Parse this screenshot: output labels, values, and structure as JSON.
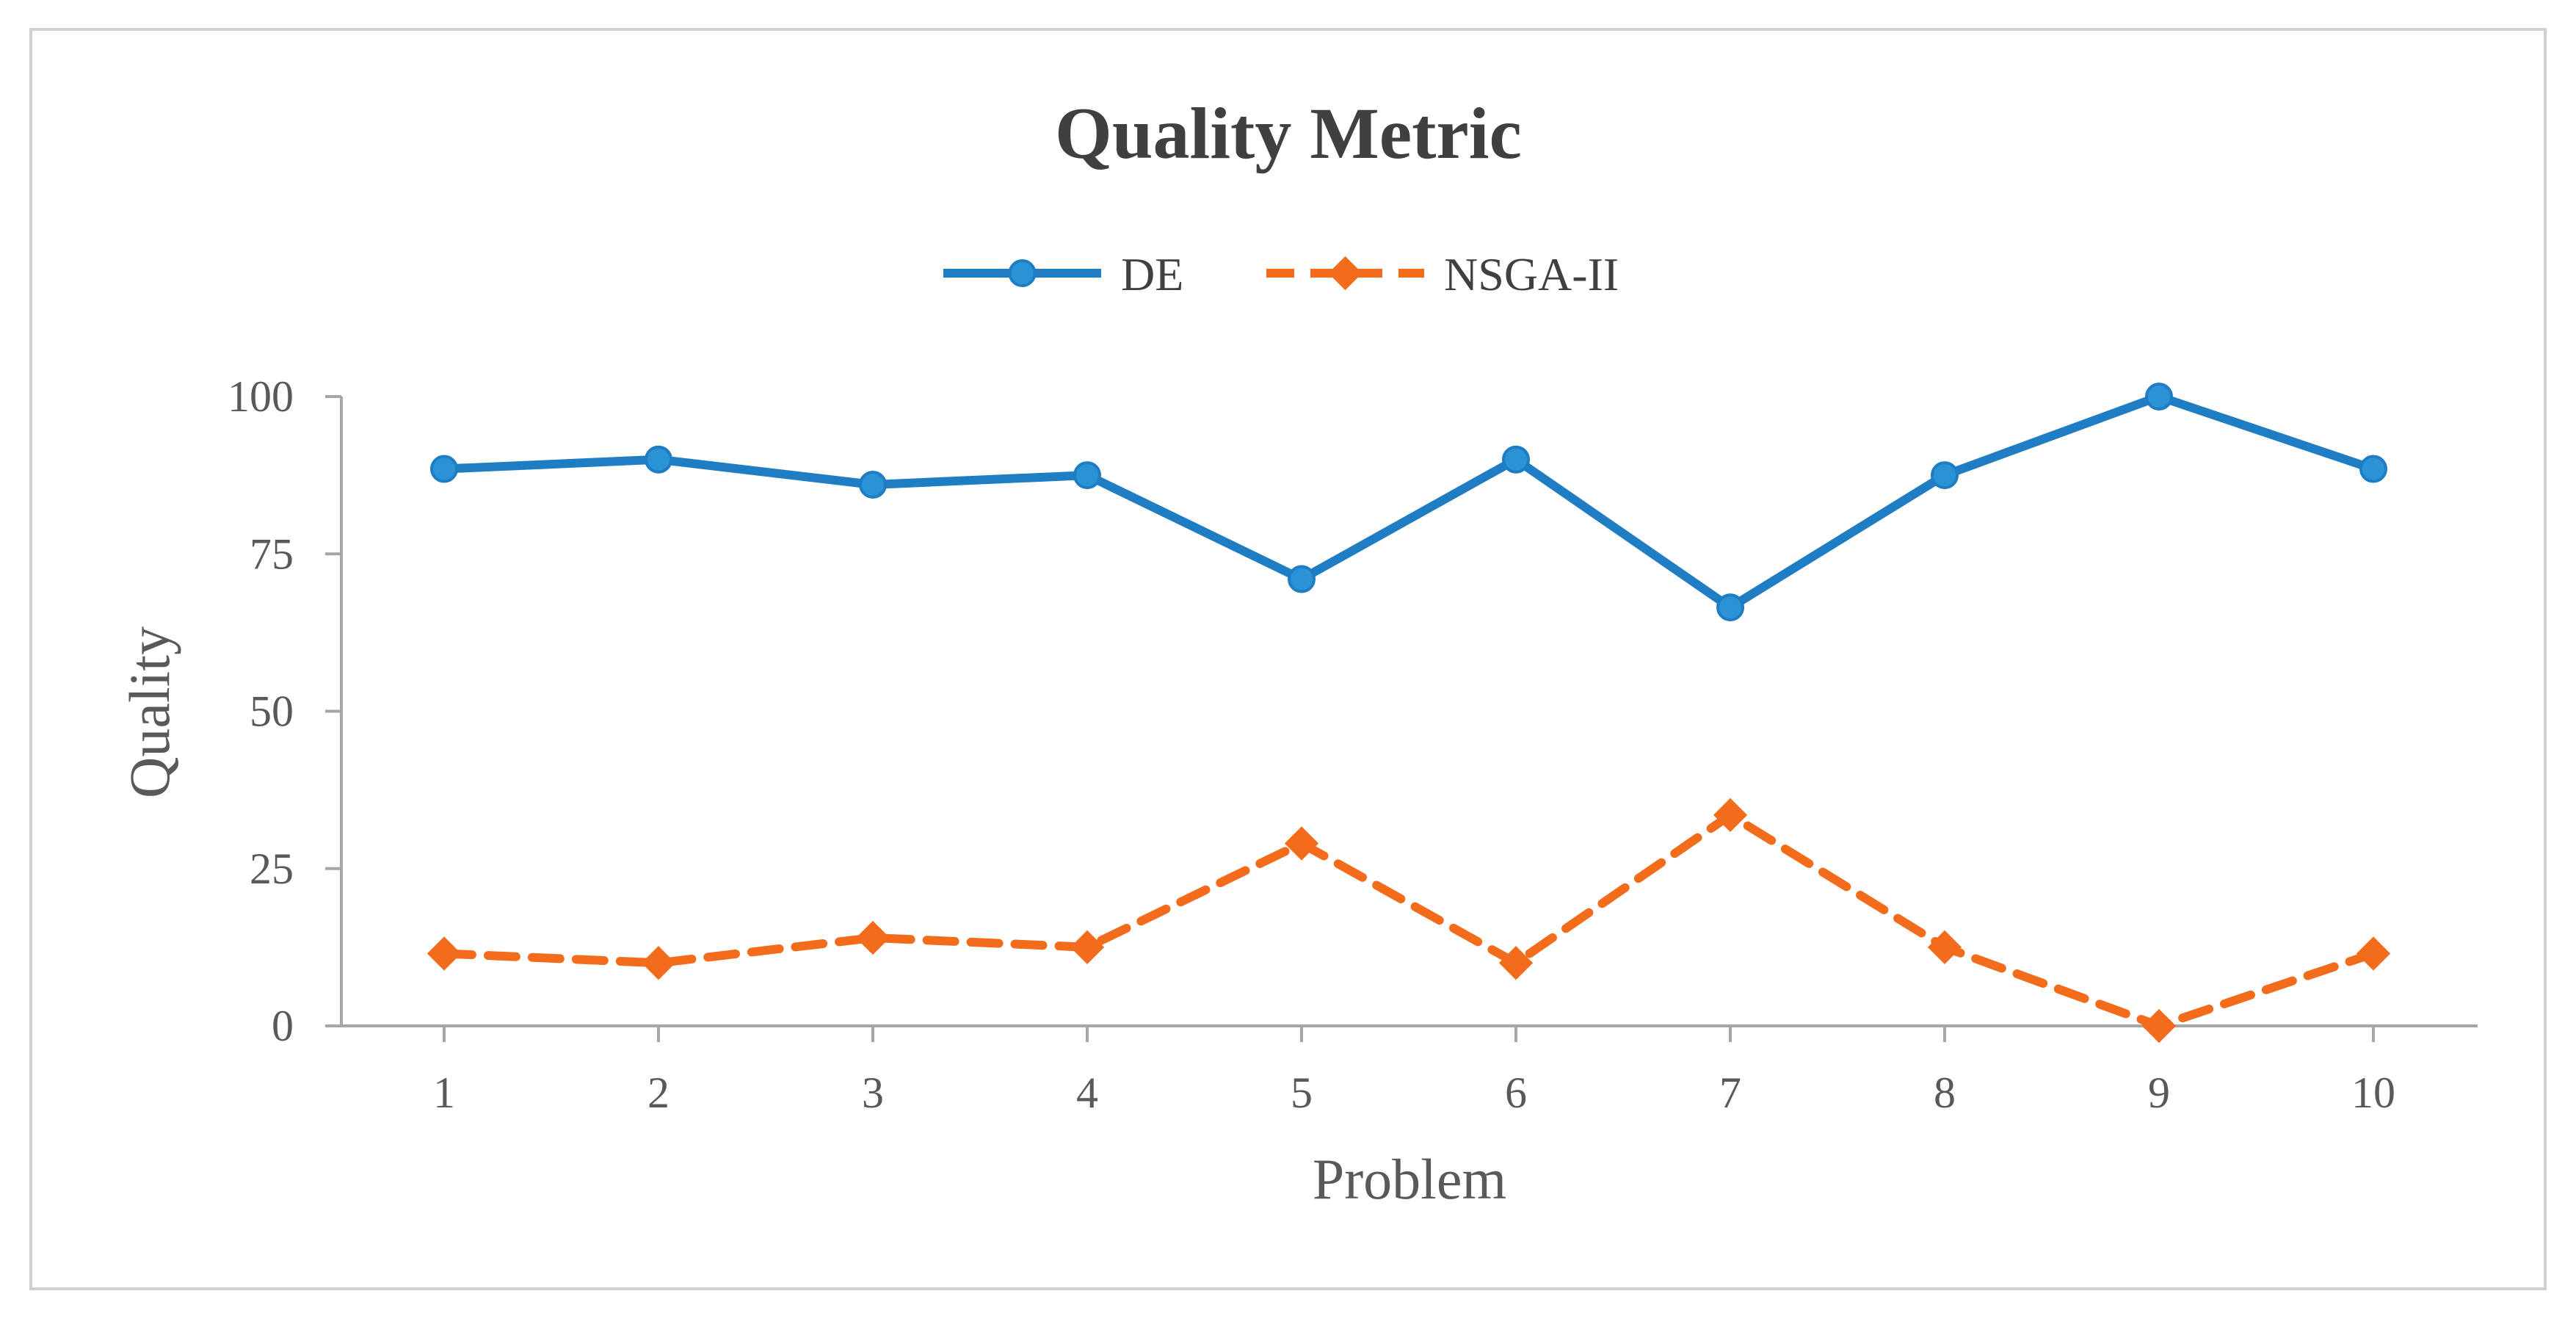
{
  "chart_data": {
    "type": "line",
    "title": "Quality Metric",
    "xlabel": "Problem",
    "ylabel": "Quality",
    "categories": [
      "1",
      "2",
      "3",
      "4",
      "5",
      "6",
      "7",
      "8",
      "9",
      "10"
    ],
    "y_ticks": [
      "0",
      "25",
      "50",
      "75",
      "100"
    ],
    "ylim": [
      0,
      100
    ],
    "grid": false,
    "legend_position": "top-center",
    "series": [
      {
        "name": "DE",
        "values": [
          88.5,
          90,
          86,
          87.5,
          71,
          90,
          66.5,
          87.5,
          100,
          88.5
        ],
        "color": "#1f7dc4",
        "marker": "circle",
        "marker_fill": "#2a93d5",
        "dash": "solid"
      },
      {
        "name": "NSGA-II",
        "values": [
          11.5,
          10,
          14,
          12.5,
          29,
          10,
          33.5,
          12.5,
          0,
          11.5
        ],
        "color": "#f26c1b",
        "marker": "diamond",
        "marker_fill": "#f26c1b",
        "dash": "dashed"
      }
    ]
  }
}
